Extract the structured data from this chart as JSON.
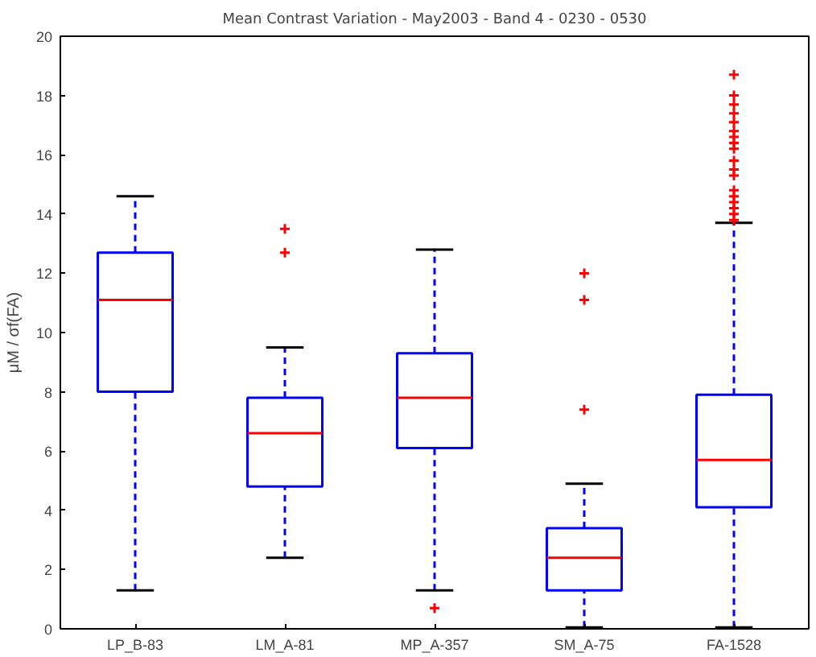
{
  "chart_data": {
    "type": "box",
    "title": "Mean Contrast Variation - May2003 - Band 4 - 0230 - 0530",
    "ylabel": "μM / σf(FA)",
    "categories": [
      "LP_B-83",
      "LM_A-81",
      "MP_A-357",
      "SM_A-75",
      "FA-1528"
    ],
    "boxes": [
      {
        "low": 1.3,
        "q1": 8.0,
        "median": 11.1,
        "q3": 12.7,
        "high": 14.6
      },
      {
        "low": 2.4,
        "q1": 4.8,
        "median": 6.6,
        "q3": 7.8,
        "high": 9.5,
        "outliers": [
          12.7,
          13.5
        ]
      },
      {
        "low": 1.3,
        "q1": 6.1,
        "median": 7.8,
        "q3": 9.3,
        "high": 12.8,
        "outliers": [
          0.7
        ]
      },
      {
        "low": 0.05,
        "q1": 1.3,
        "median": 2.4,
        "q3": 3.4,
        "high": 4.9,
        "outliers": [
          7.4,
          11.1,
          12.0
        ]
      },
      {
        "low": 0.05,
        "q1": 4.1,
        "median": 5.7,
        "q3": 7.9,
        "high": 13.7,
        "outliers": [
          13.8,
          14.0,
          14.2,
          14.4,
          14.6,
          14.8,
          15.3,
          15.5,
          15.8,
          16.2,
          16.4,
          16.6,
          16.8,
          17.1,
          17.4,
          17.7,
          18.0,
          18.7
        ]
      }
    ],
    "color": "#0000ff",
    "ylim": [
      0,
      20
    ],
    "yticks": [
      0,
      2,
      4,
      6,
      8,
      10,
      12,
      14,
      16,
      18,
      20
    ],
    "grid": false,
    "marker": "cross",
    "line_style": "dashed"
  }
}
